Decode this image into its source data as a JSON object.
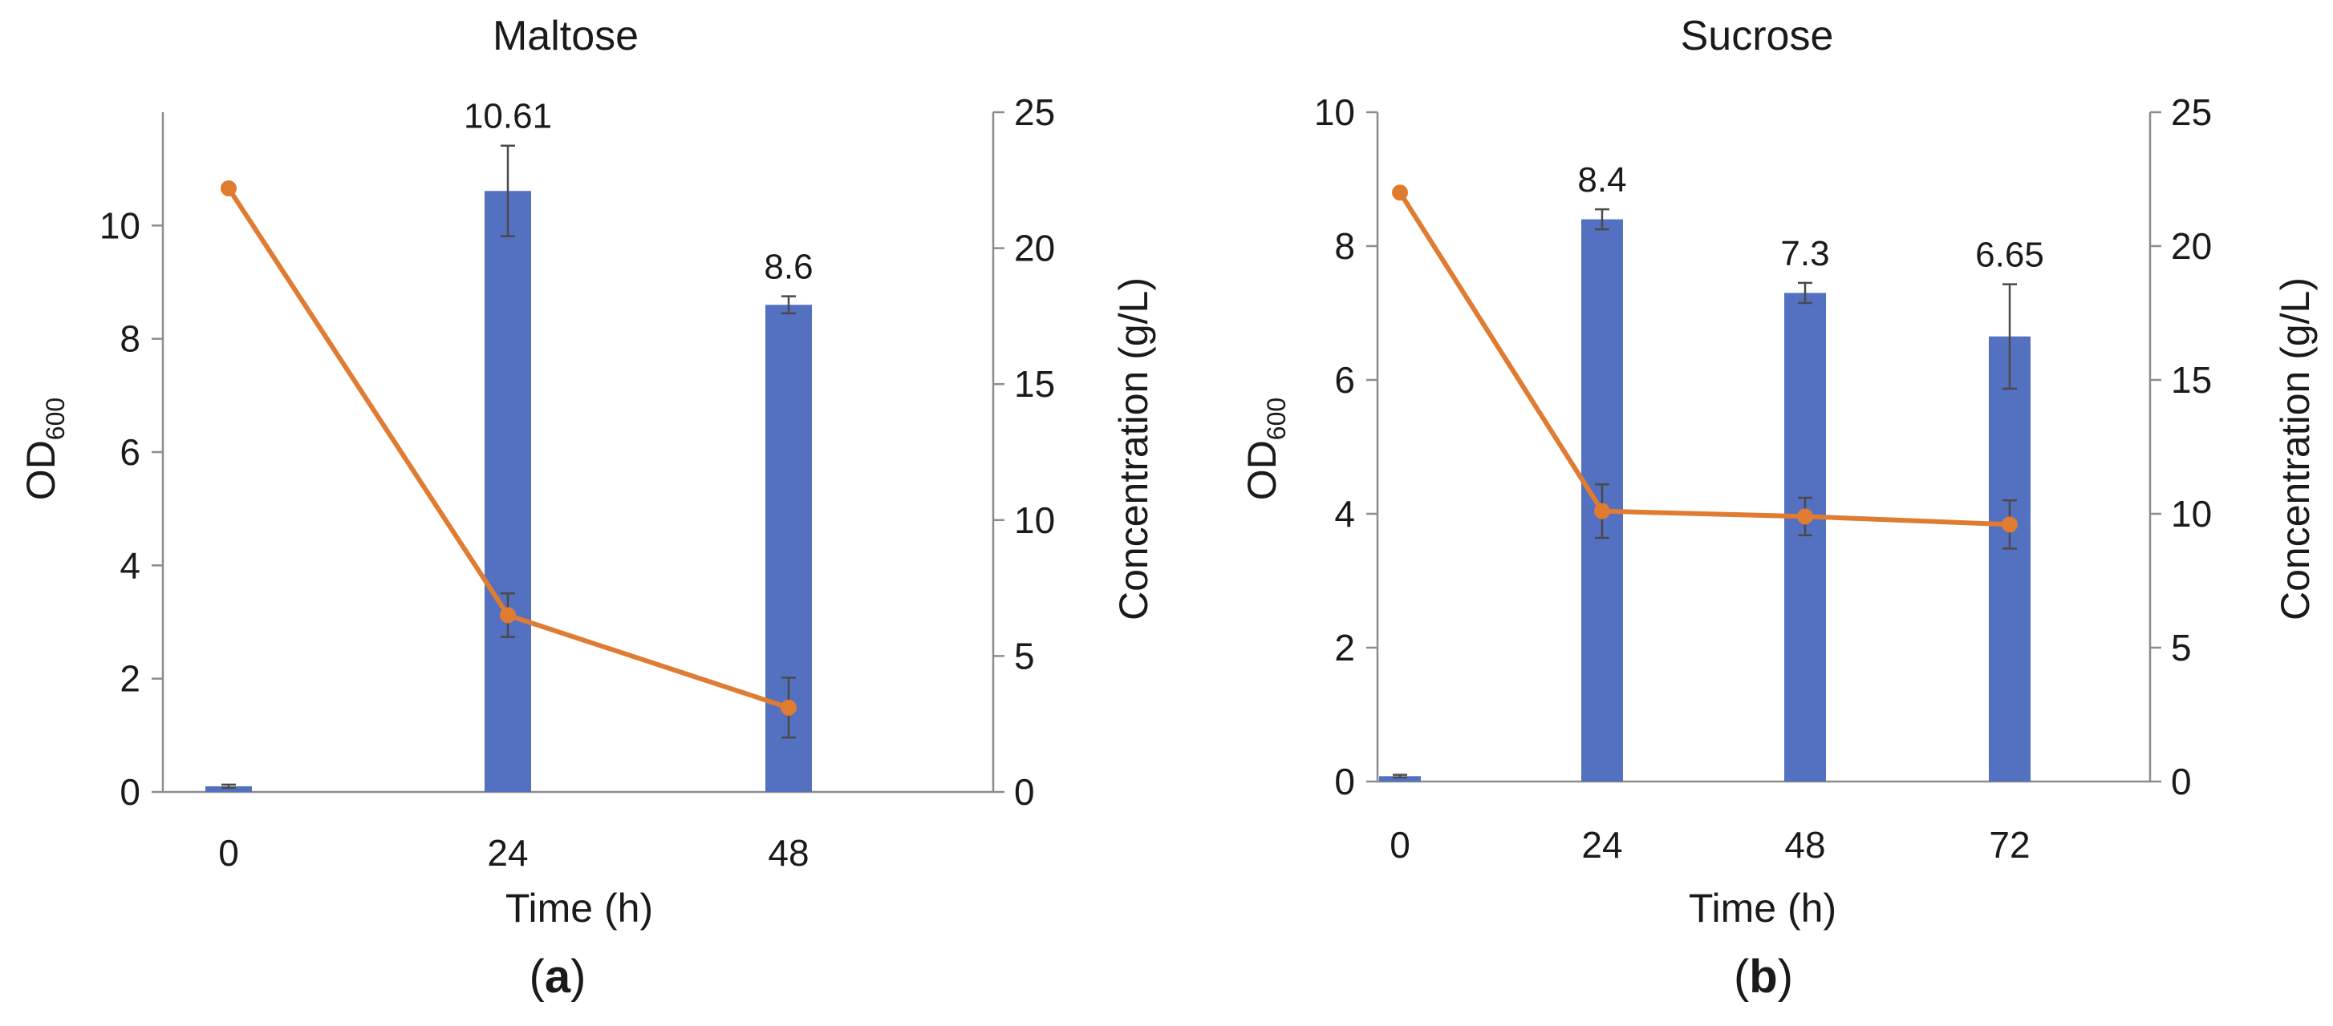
{
  "colors": {
    "bar": "#5470C1",
    "line": "#E07B32",
    "axis": "#8c8c8c",
    "error": "#4a4a4a",
    "text": "#1a1a1a"
  },
  "chart_data": [
    {
      "type": "bar",
      "panel_label": "a",
      "title": "Maltose",
      "xlabel": "Time (h)",
      "ylabel_main": "OD",
      "ylabel_sub": "600",
      "y2label": "Concentration (g/L)",
      "categories": [
        "0",
        "24",
        "48"
      ],
      "ylim": [
        0,
        12
      ],
      "yticks": [
        0,
        2,
        4,
        6,
        8,
        10
      ],
      "y2lim": [
        0,
        25
      ],
      "y2ticks": [
        0,
        5,
        10,
        15,
        20,
        25
      ],
      "series": [
        {
          "name": "OD600",
          "kind": "bar",
          "axis": "left",
          "values": [
            0.1,
            10.61,
            8.6
          ],
          "errors": [
            0.03,
            0.8,
            0.15
          ],
          "labels": [
            "",
            "10.61",
            "8.6"
          ]
        },
        {
          "name": "Concentration",
          "kind": "line",
          "axis": "right",
          "values": [
            22.2,
            6.5,
            3.1
          ],
          "errors": [
            0,
            0.8,
            1.1
          ]
        }
      ]
    },
    {
      "type": "bar",
      "panel_label": "b",
      "title": "Sucrose",
      "xlabel": "Time (h)",
      "ylabel_main": "OD",
      "ylabel_sub": "600",
      "y2label": "Concentration (g/L)",
      "categories": [
        "0",
        "24",
        "48",
        "72"
      ],
      "ylim": [
        0,
        10
      ],
      "yticks": [
        0,
        2,
        4,
        6,
        8,
        10
      ],
      "y2lim": [
        0,
        25
      ],
      "y2ticks": [
        0,
        5,
        10,
        15,
        20,
        25
      ],
      "series": [
        {
          "name": "OD600",
          "kind": "bar",
          "axis": "left",
          "values": [
            0.08,
            8.4,
            7.3,
            6.65
          ],
          "errors": [
            0.02,
            0.15,
            0.15,
            0.78
          ],
          "labels": [
            "",
            "8.4",
            "7.3",
            "6.65"
          ]
        },
        {
          "name": "Concentration",
          "kind": "line",
          "axis": "right",
          "values": [
            22.0,
            10.1,
            9.9,
            9.6
          ],
          "errors": [
            0,
            1.0,
            0.7,
            0.9
          ]
        }
      ]
    }
  ]
}
